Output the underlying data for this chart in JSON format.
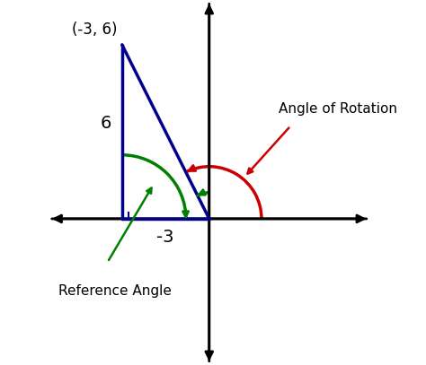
{
  "point": [
    -3,
    6
  ],
  "xlim": [
    -5.5,
    5.5
  ],
  "ylim": [
    -5.0,
    7.5
  ],
  "triangle_color": "#00008B",
  "ref_arc_color": "#008000",
  "rot_arc_color": "#CC0000",
  "point_label": "(-3, 6)",
  "label_6": "6",
  "label_neg3": "-3",
  "ref_angle_label": "Reference Angle",
  "rot_angle_label": "Angle of Rotation",
  "figsize": [
    4.74,
    4.07
  ],
  "dpi": 100
}
